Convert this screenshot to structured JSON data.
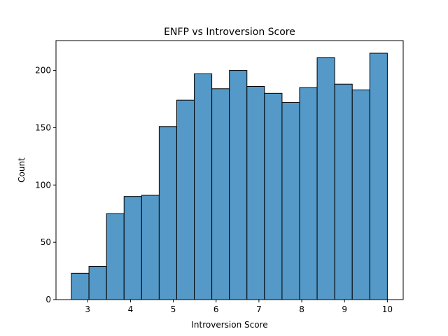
{
  "chart_data": {
    "type": "bar",
    "title": "ENFP vs Introversion Score",
    "xlabel": "Introversion Score",
    "ylabel": "Count",
    "xlim": [
      2.26,
      10.37
    ],
    "ylim": [
      0,
      226
    ],
    "x_ticks": [
      3,
      4,
      5,
      6,
      7,
      8,
      9,
      10
    ],
    "y_ticks": [
      0,
      50,
      100,
      150,
      200
    ],
    "bin_edges": [
      2.62,
      3.03,
      3.44,
      3.85,
      4.26,
      4.67,
      5.08,
      5.49,
      5.9,
      6.31,
      6.72,
      7.13,
      7.54,
      7.95,
      8.36,
      8.77,
      9.18,
      9.59,
      10.0
    ],
    "values": [
      23,
      29,
      75,
      90,
      91,
      151,
      174,
      197,
      184,
      200,
      186,
      180,
      172,
      185,
      211,
      188,
      183,
      215
    ],
    "bar_color": "#5499c7",
    "edge_color": "#000000",
    "grid": false
  }
}
